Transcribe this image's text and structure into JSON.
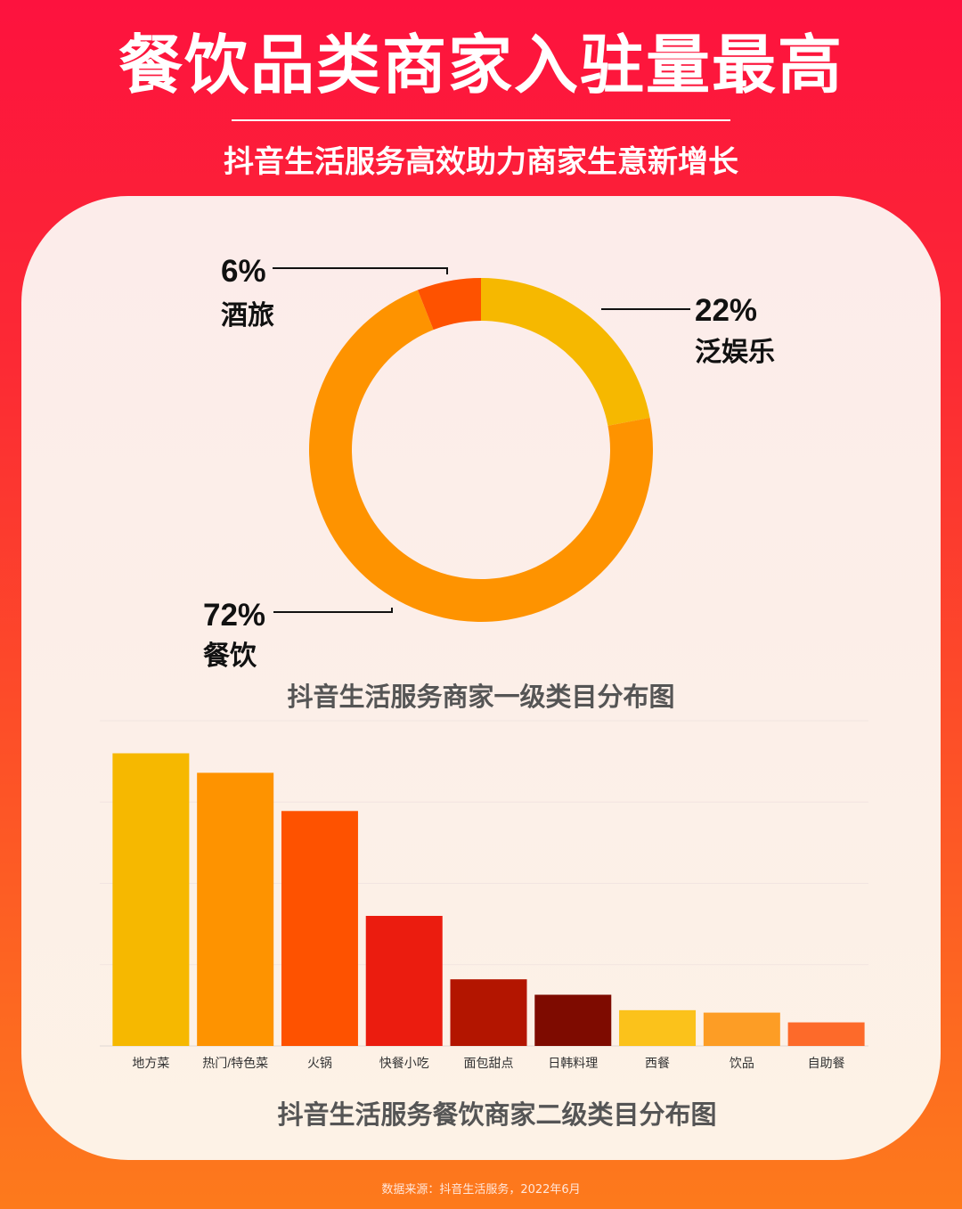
{
  "header": {
    "title": "餐饮品类商家入驻量最高",
    "subtitle": "抖音生活服务高效助力商家生意新增长"
  },
  "footer": {
    "source": "数据来源：抖音生活服务，2022年6月"
  },
  "colors": {
    "bg_top": "#fd123e",
    "bg_bottom": "#fd7a1c",
    "text_dark": "#111111",
    "chart_title": "#555555"
  },
  "chart_data": [
    {
      "type": "pie",
      "title": "抖音生活服务商家一级类目分布图",
      "donut": true,
      "slices": [
        {
          "label": "泛娱乐",
          "value": 22,
          "value_label": "22%",
          "color": "#f6b800"
        },
        {
          "label": "餐饮",
          "value": 72,
          "value_label": "72%",
          "color": "#fe9300"
        },
        {
          "label": "酒旅",
          "value": 6,
          "value_label": "6%",
          "color": "#fe5200"
        }
      ]
    },
    {
      "type": "bar",
      "title": "抖音生活服务餐饮商家二级类目分布图",
      "categories": [
        "地方菜",
        "热门/特色菜",
        "火锅",
        "快餐小吃",
        "面包甜点",
        "日韩料理",
        "西餐",
        "饮品",
        "自助餐"
      ],
      "values": [
        36,
        33.6,
        28.9,
        16,
        8.2,
        6.3,
        4.4,
        4.1,
        2.9
      ],
      "colors": [
        "#f6b800",
        "#fe9300",
        "#fe5200",
        "#eb1c0f",
        "#b31500",
        "#7e0b00",
        "#fbc21b",
        "#fd9d25",
        "#fd6a2a"
      ],
      "ylim": [
        0,
        40
      ],
      "y_axis_labels_shown": false,
      "grid": true
    }
  ]
}
